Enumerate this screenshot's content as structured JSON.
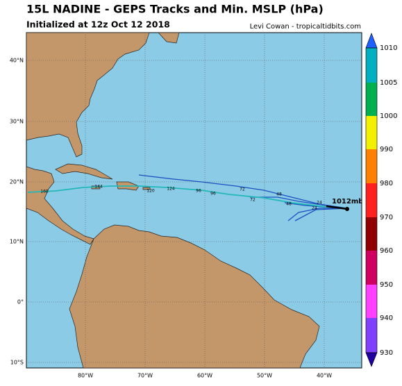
{
  "header": {
    "title": "15L NADINE - GEPS Tracks and Min. MSLP (hPa)",
    "subtitle": "Initialized at 12z Oct 12 2018",
    "credit": "Levi Cowan - tropicaltidbits.com"
  },
  "map": {
    "lon_labels": [
      "80°W",
      "70°W",
      "60°W",
      "50°W",
      "40°W"
    ],
    "lat_labels": [
      "40°N",
      "30°N",
      "20°N",
      "10°N",
      "0°",
      "10°S"
    ],
    "current_label": "1012mb",
    "track_labels": [
      "168",
      "144",
      "120",
      "124",
      "96",
      "96",
      "72",
      "72",
      "48",
      "48",
      "24",
      "24"
    ]
  },
  "colorbar": {
    "levels": [
      1010,
      1005,
      1000,
      990,
      980,
      970,
      960,
      950,
      940,
      930
    ],
    "colors": [
      "#00b0c0",
      "#00b050",
      "#f0f000",
      "#ff8000",
      "#ff2020",
      "#900000",
      "#d00060",
      "#ff40ff",
      "#8040ff"
    ],
    "top_color": "#2060ff",
    "bottom_color": "#2000a0"
  }
}
